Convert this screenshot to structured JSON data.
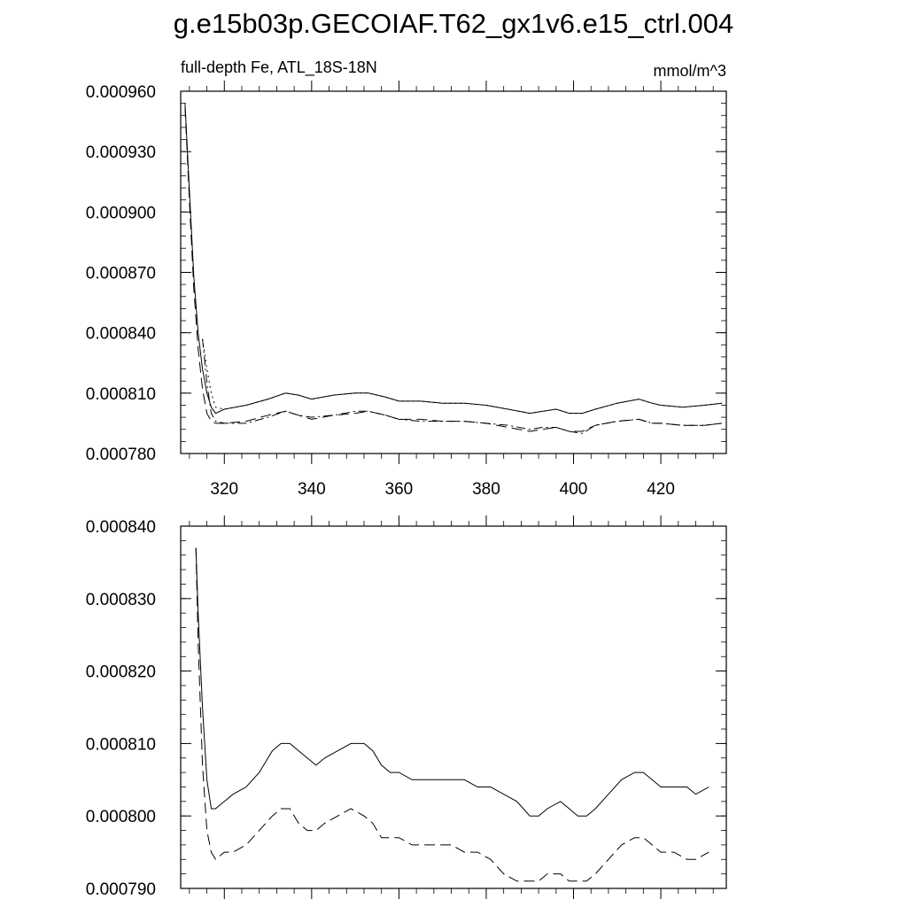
{
  "title": "g.e15b03p.GECOIAF.T62_gx1v6.e15_ctrl.004",
  "chart_data": [
    {
      "type": "line",
      "left_label": "full-depth Fe, ATL_18S-18N",
      "right_label": "mmol/m^3",
      "xlim": [
        310,
        435
      ],
      "ylim": [
        0.00078,
        0.00096
      ],
      "x_ticks": [
        320,
        340,
        360,
        380,
        400,
        420
      ],
      "x_tick_labels": [
        "320",
        "340",
        "360",
        "380",
        "400",
        "420"
      ],
      "y_ticks": [
        0.00078,
        0.00081,
        0.00084,
        0.00087,
        0.0009,
        0.00093,
        0.00096
      ],
      "y_tick_labels": [
        "0.000780",
        "0.000810",
        "0.000840",
        "0.000870",
        "0.000900",
        "0.000930",
        "0.000960"
      ],
      "series": [
        {
          "style": "solid",
          "x": [
            311,
            312,
            313,
            314,
            315,
            316,
            317,
            318,
            320,
            325,
            330,
            334,
            337,
            340,
            345,
            350,
            353,
            357,
            360,
            365,
            370,
            375,
            380,
            385,
            390,
            393,
            396,
            399,
            402,
            405,
            410,
            415,
            418,
            420,
            425,
            430,
            434
          ],
          "y": [
            0.000954,
            0.00091,
            0.000868,
            0.00084,
            0.000822,
            0.00081,
            0.000803,
            0.0008,
            0.000802,
            0.000804,
            0.000807,
            0.00081,
            0.000809,
            0.000807,
            0.000809,
            0.00081,
            0.00081,
            0.000808,
            0.000806,
            0.000806,
            0.000805,
            0.000805,
            0.000804,
            0.000802,
            0.0008,
            0.000801,
            0.000802,
            0.0008,
            0.0008,
            0.000802,
            0.000805,
            0.000807,
            0.000805,
            0.000804,
            0.000803,
            0.000804,
            0.000805
          ]
        },
        {
          "style": "dashed",
          "x": [
            311,
            312,
            313,
            314,
            315,
            316,
            317,
            318,
            320,
            325,
            330,
            334,
            337,
            340,
            345,
            350,
            353,
            357,
            360,
            365,
            370,
            375,
            380,
            385,
            390,
            393,
            396,
            399,
            402,
            405,
            410,
            415,
            418,
            420,
            425,
            430,
            434
          ],
          "y": [
            0.000952,
            0.000905,
            0.000862,
            0.000832,
            0.000812,
            0.0008,
            0.000796,
            0.000795,
            0.000795,
            0.000796,
            0.000799,
            0.000801,
            0.000799,
            0.000797,
            0.000799,
            0.0008,
            0.000801,
            0.000799,
            0.000797,
            0.000797,
            0.000796,
            0.000796,
            0.000795,
            0.000793,
            0.000791,
            0.000792,
            0.000793,
            0.000791,
            0.000791,
            0.000794,
            0.000796,
            0.000797,
            0.000795,
            0.000795,
            0.000794,
            0.000794,
            0.000795
          ]
        },
        {
          "style": "dotted",
          "x": [
            315,
            316,
            317,
            318,
            320,
            325,
            330,
            334,
            337,
            340,
            345,
            350,
            353,
            357,
            360,
            365,
            370,
            375,
            380,
            385,
            390,
            393,
            396,
            399,
            402,
            405,
            410,
            415,
            418,
            420,
            425,
            430,
            434
          ],
          "y": [
            0.000837,
            0.000822,
            0.00081,
            0.000803,
            0.000802,
            0.000804,
            0.000807,
            0.00081,
            0.000809,
            0.000807,
            0.000809,
            0.00081,
            0.00081,
            0.000808,
            0.000806,
            0.000806,
            0.000805,
            0.000805,
            0.000804,
            0.000802,
            0.0008,
            0.000801,
            0.000802,
            0.0008,
            0.0008,
            0.000802,
            0.000805,
            0.000807,
            0.000805,
            0.000804,
            0.000803,
            0.000804,
            0.000805
          ]
        },
        {
          "style": "dashdot",
          "x": [
            315,
            316,
            317,
            318,
            320,
            325,
            330,
            334,
            337,
            340,
            345,
            350,
            353,
            357,
            360,
            365,
            370,
            375,
            380,
            385,
            390,
            393,
            396,
            399,
            402,
            405,
            410,
            415,
            418,
            420,
            425,
            430,
            434
          ],
          "y": [
            0.000837,
            0.000815,
            0.0008,
            0.000796,
            0.000795,
            0.000795,
            0.000798,
            0.000801,
            0.000799,
            0.000798,
            0.000799,
            0.000801,
            0.000801,
            0.000799,
            0.000797,
            0.000796,
            0.000796,
            0.000796,
            0.000795,
            0.000794,
            0.000792,
            0.000793,
            0.000793,
            0.000791,
            0.00079,
            0.000794,
            0.000796,
            0.000797,
            0.000795,
            0.000795,
            0.000794,
            0.000794,
            0.000795
          ]
        }
      ]
    },
    {
      "type": "line",
      "xlim": [
        310,
        435
      ],
      "ylim": [
        0.00079,
        0.00084
      ],
      "x_ticks": [
        320,
        340,
        360,
        380,
        400,
        420
      ],
      "y_ticks": [
        0.00079,
        0.0008,
        0.00081,
        0.00082,
        0.00083,
        0.00084
      ],
      "y_tick_labels": [
        "0.000790",
        "0.000800",
        "0.000810",
        "0.000820",
        "0.000830",
        "0.000840"
      ],
      "series": [
        {
          "style": "solid",
          "x": [
            313.5,
            314,
            315,
            316,
            317,
            318,
            320,
            322,
            325,
            328,
            331,
            333,
            335,
            337,
            339,
            341,
            343,
            346,
            349,
            352,
            354,
            356,
            358,
            360,
            363,
            366,
            369,
            372,
            375,
            378,
            381,
            384,
            387,
            390,
            392,
            394,
            397,
            399,
            401,
            403,
            405,
            408,
            411,
            414,
            416,
            418,
            420,
            423,
            426,
            428,
            431
          ],
          "y": [
            0.000837,
            0.000828,
            0.000815,
            0.000805,
            0.000801,
            0.000801,
            0.000802,
            0.000803,
            0.000804,
            0.000806,
            0.000809,
            0.00081,
            0.00081,
            0.000809,
            0.000808,
            0.000807,
            0.000808,
            0.000809,
            0.00081,
            0.00081,
            0.000809,
            0.000807,
            0.000806,
            0.000806,
            0.000805,
            0.000805,
            0.000805,
            0.000805,
            0.000805,
            0.000804,
            0.000804,
            0.000803,
            0.000802,
            0.0008,
            0.0008,
            0.000801,
            0.000802,
            0.000801,
            0.0008,
            0.0008,
            0.000801,
            0.000803,
            0.000805,
            0.000806,
            0.000806,
            0.000805,
            0.000804,
            0.000804,
            0.000804,
            0.000803,
            0.000804
          ]
        },
        {
          "style": "dashed",
          "x": [
            313.5,
            314,
            315,
            316,
            317,
            318,
            320,
            322,
            325,
            328,
            331,
            333,
            335,
            337,
            339,
            341,
            343,
            346,
            349,
            352,
            354,
            356,
            358,
            360,
            363,
            366,
            369,
            372,
            375,
            378,
            381,
            384,
            387,
            390,
            392,
            394,
            397,
            399,
            401,
            403,
            405,
            408,
            411,
            414,
            416,
            418,
            420,
            423,
            426,
            428,
            431
          ],
          "y": [
            0.000837,
            0.000824,
            0.000807,
            0.000798,
            0.000795,
            0.000794,
            0.000795,
            0.000795,
            0.000796,
            0.000798,
            0.0008,
            0.000801,
            0.000801,
            0.000799,
            0.000798,
            0.000798,
            0.000799,
            0.0008,
            0.000801,
            0.0008,
            0.000799,
            0.000797,
            0.000797,
            0.000797,
            0.000796,
            0.000796,
            0.000796,
            0.000796,
            0.000795,
            0.000795,
            0.000794,
            0.000792,
            0.000791,
            0.000791,
            0.000791,
            0.000792,
            0.000792,
            0.000791,
            0.000791,
            0.000791,
            0.000792,
            0.000794,
            0.000796,
            0.000797,
            0.000797,
            0.000796,
            0.000795,
            0.000795,
            0.000794,
            0.000794,
            0.000795
          ]
        }
      ]
    }
  ]
}
